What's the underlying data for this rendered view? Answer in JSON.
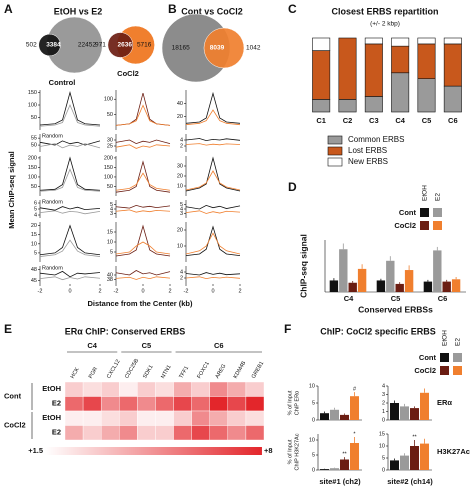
{
  "panel_letters": [
    "A",
    "B",
    "C",
    "D",
    "E",
    "F"
  ],
  "chart_data": [
    {
      "type": "venn",
      "title": "EtOH vs E2",
      "venns": [
        {
          "name": "Control",
          "values": [
            502,
            3384,
            22452
          ],
          "colors": [
            "#111111",
            "#9a9a9a"
          ]
        },
        {
          "name": "CoCl2",
          "values": [
            971,
            2636,
            5716
          ],
          "colors": [
            "#6b1d12",
            "#f07f2e"
          ]
        }
      ]
    },
    {
      "type": "venn",
      "title": "Cont vs CoCl2",
      "venns": [
        {
          "values": [
            18165,
            8039,
            1042
          ],
          "colors": [
            "#8c8c8c",
            "#f07f2e"
          ]
        }
      ]
    },
    {
      "type": "profile",
      "y_label": "Mean ChIP-seq signal",
      "x_label": "Distance from the Center (kb)",
      "x": [
        -2,
        -1,
        -0.5,
        0,
        0.5,
        1,
        2
      ],
      "xlim": [
        -2,
        2
      ],
      "xticks": [
        -2,
        0,
        2
      ],
      "columns": [
        {
          "colors": [
            "#111111",
            "#9a9a9a"
          ],
          "panels": [
            {
              "ylim": [
                0,
                160
              ],
              "yticks": [
                50,
                100,
                150
              ],
              "values": [
                [
                  20,
                  25,
                  40,
                  150,
                  40,
                  25,
                  20
                ],
                [
                  15,
                  20,
                  30,
                  100,
                  30,
                  20,
                  15
                ]
              ]
            },
            {
              "label": "Random",
              "ylim": [
                45,
                58
              ],
              "yticks": [
                50,
                55
              ],
              "values": [
                [
                  52,
                  50,
                  53,
                  51,
                  52,
                  50,
                  53
                ],
                [
                  49,
                  51,
                  48,
                  50,
                  49,
                  51,
                  48
                ]
              ]
            },
            {
              "ylim": [
                0,
                210
              ],
              "yticks": [
                50,
                100,
                150,
                200
              ],
              "values": [
                [
                  30,
                  35,
                  60,
                  200,
                  60,
                  35,
                  30
                ],
                [
                  25,
                  30,
                  45,
                  140,
                  45,
                  30,
                  25
                ]
              ]
            },
            {
              "label": "Random",
              "ylim": [
                3.5,
                6.5
              ],
              "yticks": [
                4,
                5,
                6
              ],
              "values": [
                [
                  5.2,
                  4.8,
                  5.4,
                  5,
                  5.3,
                  4.9,
                  5.1
                ],
                [
                  4.4,
                  4.7,
                  4.3,
                  4.6,
                  4.5,
                  4.2,
                  4.6
                ]
              ]
            },
            {
              "ylim": [
                0,
                22
              ],
              "yticks": [
                5,
                10,
                15,
                20
              ],
              "values": [
                [
                  4,
                  5,
                  8,
                  20,
                  8,
                  5,
                  4
                ],
                [
                  3,
                  4,
                  6,
                  12,
                  6,
                  4,
                  3
                ]
              ]
            },
            {
              "label": "Random",
              "ylim": [
                44,
                49
              ],
              "yticks": [
                45,
                48
              ],
              "values": [
                [
                  47,
                  46.5,
                  47.5,
                  46,
                  47,
                  46.8,
                  47.2
                ],
                [
                  45.5,
                  46,
                  45.2,
                  45.8,
                  45.4,
                  46,
                  45.6
                ]
              ]
            }
          ]
        },
        {
          "colors": [
            "#6b1d12",
            "#f07f2e"
          ],
          "panels": [
            {
              "ylim": [
                0,
                130
              ],
              "yticks": [
                50,
                100
              ],
              "values": [
                [
                  15,
                  20,
                  35,
                  120,
                  35,
                  20,
                  15
                ],
                [
                  15,
                  20,
                  30,
                  80,
                  30,
                  20,
                  15
                ]
              ]
            },
            {
              "ylim": [
                20,
                35
              ],
              "yticks": [
                25,
                30
              ],
              "values": [
                [
                  28,
                  30,
                  27,
                  29,
                  28,
                  30,
                  27
                ],
                [
                  24,
                  26,
                  23,
                  25,
                  24,
                  26,
                  25
                ]
              ]
            },
            {
              "ylim": [
                0,
                210
              ],
              "yticks": [
                50,
                100,
                150,
                200
              ],
              "values": [
                [
                  20,
                  30,
                  50,
                  180,
                  50,
                  30,
                  20
                ],
                [
                  30,
                  40,
                  60,
                  120,
                  60,
                  40,
                  30
                ]
              ]
            },
            {
              "ylim": [
                2,
                6
              ],
              "yticks": [
                3,
                4,
                5
              ],
              "values": [
                [
                  4.5,
                  4.2,
                  4.8,
                  4.4,
                  4.6,
                  4.3,
                  4.7
                ],
                [
                  3.5,
                  3.8,
                  3.3,
                  3.6,
                  3.4,
                  3.7,
                  3.5
                ]
              ]
            },
            {
              "ylim": [
                0,
                20
              ],
              "yticks": [
                5,
                10,
                15
              ],
              "values": [
                [
                  3,
                  4,
                  6,
                  18,
                  6,
                  4,
                  3
                ],
                [
                  4,
                  5,
                  8,
                  10,
                  8,
                  5,
                  4
                ]
              ]
            },
            {
              "ylim": [
                36,
                44
              ],
              "yticks": [
                38,
                40
              ],
              "values": [
                [
                  41,
                  40,
                  42,
                  40.5,
                  41,
                  40,
                  41.5
                ],
                [
                  38.5,
                  39,
                  38,
                  39,
                  38.4,
                  39.2,
                  38.6
                ]
              ]
            }
          ]
        },
        {
          "colors": [
            "#111111",
            "#f07f2e"
          ],
          "panels": [
            {
              "ylim": [
                0,
                60
              ],
              "yticks": [
                20,
                40
              ],
              "values": [
                [
                  10,
                  12,
                  18,
                  55,
                  18,
                  12,
                  10
                ],
                [
                  8,
                  10,
                  14,
                  30,
                  14,
                  10,
                  8
                ]
              ]
            },
            {
              "ylim": [
                0,
                6
              ],
              "yticks": [
                2,
                4
              ],
              "values": [
                [
                  4,
                  4.5,
                  3.8,
                  4.2,
                  4,
                  4.4,
                  3.9
                ],
                [
                  2.5,
                  2.8,
                  2.3,
                  2.6,
                  2.4,
                  2.7,
                  2.5
                ]
              ]
            },
            {
              "ylim": [
                0,
                40
              ],
              "yticks": [
                10,
                20,
                30
              ],
              "values": [
                [
                  5,
                  8,
                  12,
                  38,
                  12,
                  8,
                  5
                ],
                [
                  6,
                  9,
                  13,
                  25,
                  13,
                  9,
                  6
                ]
              ]
            },
            {
              "ylim": [
                2,
                6
              ],
              "yticks": [
                3,
                4,
                5
              ],
              "values": [
                [
                  4.5,
                  4,
                  4.8,
                  4.3,
                  4.6,
                  4.1,
                  4.7
                ],
                [
                  3.2,
                  3.6,
                  3,
                  3.4,
                  3.1,
                  3.5,
                  3.3
                ]
              ]
            },
            {
              "ylim": [
                0,
                25
              ],
              "yticks": [
                10,
                20
              ],
              "values": [
                [
                  4,
                  5,
                  8,
                  22,
                  8,
                  5,
                  4
                ],
                [
                  5,
                  7,
                  10,
                  18,
                  10,
                  7,
                  5
                ]
              ]
            },
            {
              "ylim": [
                0,
                6
              ],
              "yticks": [
                2,
                4
              ],
              "values": [
                [
                  3.5,
                  3,
                  3.8,
                  3.2,
                  3.6,
                  3.1,
                  3.4
                ],
                [
                  2,
                  2.4,
                  1.8,
                  2.2,
                  2,
                  2.3,
                  1.9
                ]
              ]
            }
          ]
        }
      ]
    },
    {
      "type": "stacked_bar",
      "title": "Closest ERBS repartition",
      "subtitle": "(+/- 2 kbp)",
      "categories": [
        "C1",
        "C2",
        "C3",
        "C4",
        "C5",
        "C6"
      ],
      "ylim": [
        0,
        100
      ],
      "series": [
        {
          "name": "Common ERBS",
          "color": "#9a9a9a",
          "values": [
            17,
            17,
            21,
            53,
            45,
            35
          ]
        },
        {
          "name": "Lost ERBS",
          "color": "#c8581c",
          "values": [
            66,
            83,
            71,
            36,
            47,
            57
          ]
        },
        {
          "name": "New ERBS",
          "color": "#ffffff",
          "values": [
            17,
            0,
            8,
            11,
            8,
            8
          ]
        }
      ]
    },
    {
      "type": "grouped_bar",
      "y_label": "ChIP-seq signal",
      "x_label": "Conserved ERBSs",
      "legend_columns": [
        "EtOH",
        "E2"
      ],
      "legend_rows": [
        "Cont",
        "CoCl2"
      ],
      "categories": [
        "C4",
        "C5",
        "C6"
      ],
      "ylim": [
        0,
        450
      ],
      "series": [
        {
          "color": "#111111",
          "values": [
            100,
            100,
            90
          ],
          "errors": [
            20,
            15,
            15
          ]
        },
        {
          "color": "#9a9a9a",
          "values": [
            370,
            270,
            360
          ],
          "errors": [
            50,
            40,
            30
          ]
        },
        {
          "color": "#6b1d12",
          "values": [
            80,
            70,
            90
          ],
          "errors": [
            15,
            15,
            15
          ]
        },
        {
          "color": "#f07f2e",
          "values": [
            200,
            190,
            110
          ],
          "errors": [
            40,
            40,
            20
          ]
        }
      ]
    },
    {
      "type": "heatmap",
      "title": "ERα ChIP: Conserved ERBS",
      "column_groups": [
        {
          "name": "C4",
          "columns": [
            "HCK",
            "PGR",
            "CXCL12"
          ]
        },
        {
          "name": "C5",
          "columns": [
            "CDC25B",
            "SDK1",
            "NTN1"
          ]
        },
        {
          "name": "C6",
          "columns": [
            "TFF1",
            "FOXC1",
            "AREG",
            "KDM4B",
            "GREB1"
          ]
        }
      ],
      "row_groups": [
        {
          "name": "Cont",
          "rows": [
            "EtOH",
            "E2"
          ]
        },
        {
          "name": "CoCl2",
          "rows": [
            "EtOH",
            "E2"
          ]
        }
      ],
      "values": [
        [
          3,
          2.5,
          3,
          2,
          3,
          2.5,
          4,
          3,
          5,
          4,
          3
        ],
        [
          6,
          7,
          5,
          6,
          5,
          6,
          7,
          6,
          8,
          7,
          8
        ],
        [
          2,
          2,
          2.5,
          3,
          2,
          2,
          3,
          5,
          4,
          3,
          2.5
        ],
        [
          4,
          3,
          4,
          5,
          3,
          3,
          6,
          7,
          6,
          5,
          6
        ]
      ],
      "zlim": [
        1.5,
        8
      ],
      "zticks": [
        {
          "value": 1.5,
          "label": "+1.5"
        },
        {
          "value": 8,
          "label": "+8"
        }
      ],
      "cmap": [
        "#ffffff",
        "#e3262b"
      ]
    },
    {
      "type": "bar_panel",
      "title": "ChIP: CoCl2 specific ERBS",
      "legend_columns": [
        "EtOH",
        "E2"
      ],
      "legend_rows": [
        "Cont",
        "CoCl2"
      ],
      "colors": [
        "#111111",
        "#9a9a9a",
        "#6b1d12",
        "#f07f2e"
      ],
      "y_labels": [
        [
          "% of Input",
          "ChIP ERα"
        ],
        [
          "% of Input",
          "ChIP H3K27Ac"
        ]
      ],
      "row_labels": [
        "ERα",
        "H3K27Ac"
      ],
      "x_labels": [
        "site#1 (ch2)",
        "site#2 (ch14)"
      ],
      "plots": [
        {
          "values": [
            2,
            3,
            1.5,
            7
          ],
          "errors": [
            0.5,
            0.6,
            0.4,
            1.2
          ],
          "ylim": [
            0,
            10
          ],
          "yticks": [
            0,
            5,
            10
          ],
          "annotations": [
            null,
            null,
            null,
            "#"
          ]
        },
        {
          "values": [
            2,
            1.6,
            1.4,
            3.2
          ],
          "errors": [
            0.3,
            0.3,
            0.2,
            0.5
          ],
          "ylim": [
            0,
            4
          ],
          "yticks": [
            0,
            1,
            2,
            3,
            4
          ]
        },
        {
          "values": [
            0.3,
            0.6,
            3.5,
            9
          ],
          "errors": [
            0.1,
            0.2,
            0.8,
            2
          ],
          "ylim": [
            0,
            12
          ],
          "yticks": [
            0,
            5,
            10
          ],
          "annotations": [
            null,
            null,
            "**",
            "*"
          ]
        },
        {
          "values": [
            4,
            6,
            10,
            11
          ],
          "errors": [
            0.8,
            1,
            2.5,
            2
          ],
          "ylim": [
            0,
            15
          ],
          "yticks": [
            0,
            5,
            10,
            15
          ],
          "annotations": [
            null,
            null,
            "**",
            null
          ]
        }
      ]
    }
  ]
}
